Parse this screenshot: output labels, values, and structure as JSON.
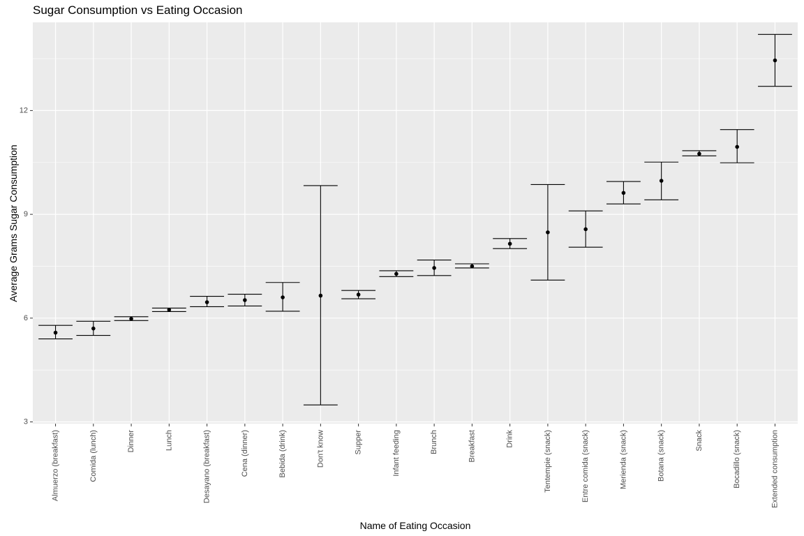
{
  "chart_data": {
    "type": "scatter",
    "title": "Sugar Consumption vs Eating Occasion",
    "xlabel": "Name of Eating Occasion",
    "ylabel": "Average Grams Sugar Consumption",
    "ylim": [
      2.95,
      14.55
    ],
    "yticks": [
      3,
      6,
      9,
      12
    ],
    "grid": true,
    "error_bars": true,
    "categories": [
      "Almuerzo (breakfast)",
      "Comida (lunch)",
      "Dinner",
      "Lunch",
      "Desayano (breakfast)",
      "Cena (dinner)",
      "Bebida (drink)",
      "Don't know",
      "Supper",
      "Infant feeding",
      "Brunch",
      "Breakfast",
      "Drink",
      "Tentempie (snack)",
      "Entre comida (snack)",
      "Merienda (snack)",
      "Botana (snack)",
      "Snack",
      "Bocadillo (snack)",
      "Extended consumption"
    ],
    "series": [
      {
        "values": [
          5.58,
          5.7,
          5.98,
          6.24,
          6.46,
          6.52,
          6.6,
          6.65,
          6.68,
          7.28,
          7.45,
          7.5,
          8.15,
          8.48,
          8.57,
          9.62,
          9.97,
          10.75,
          10.95,
          13.45
        ],
        "lower": [
          5.4,
          5.5,
          5.93,
          6.19,
          6.33,
          6.35,
          6.2,
          3.49,
          6.56,
          7.2,
          7.23,
          7.45,
          8.01,
          7.1,
          8.05,
          9.3,
          9.42,
          10.69,
          10.49,
          12.7
        ],
        "upper": [
          5.79,
          5.91,
          6.04,
          6.29,
          6.63,
          6.69,
          7.03,
          9.83,
          6.8,
          7.37,
          7.68,
          7.57,
          8.3,
          9.86,
          9.1,
          9.95,
          10.51,
          10.84,
          11.45,
          14.2
        ]
      }
    ]
  }
}
